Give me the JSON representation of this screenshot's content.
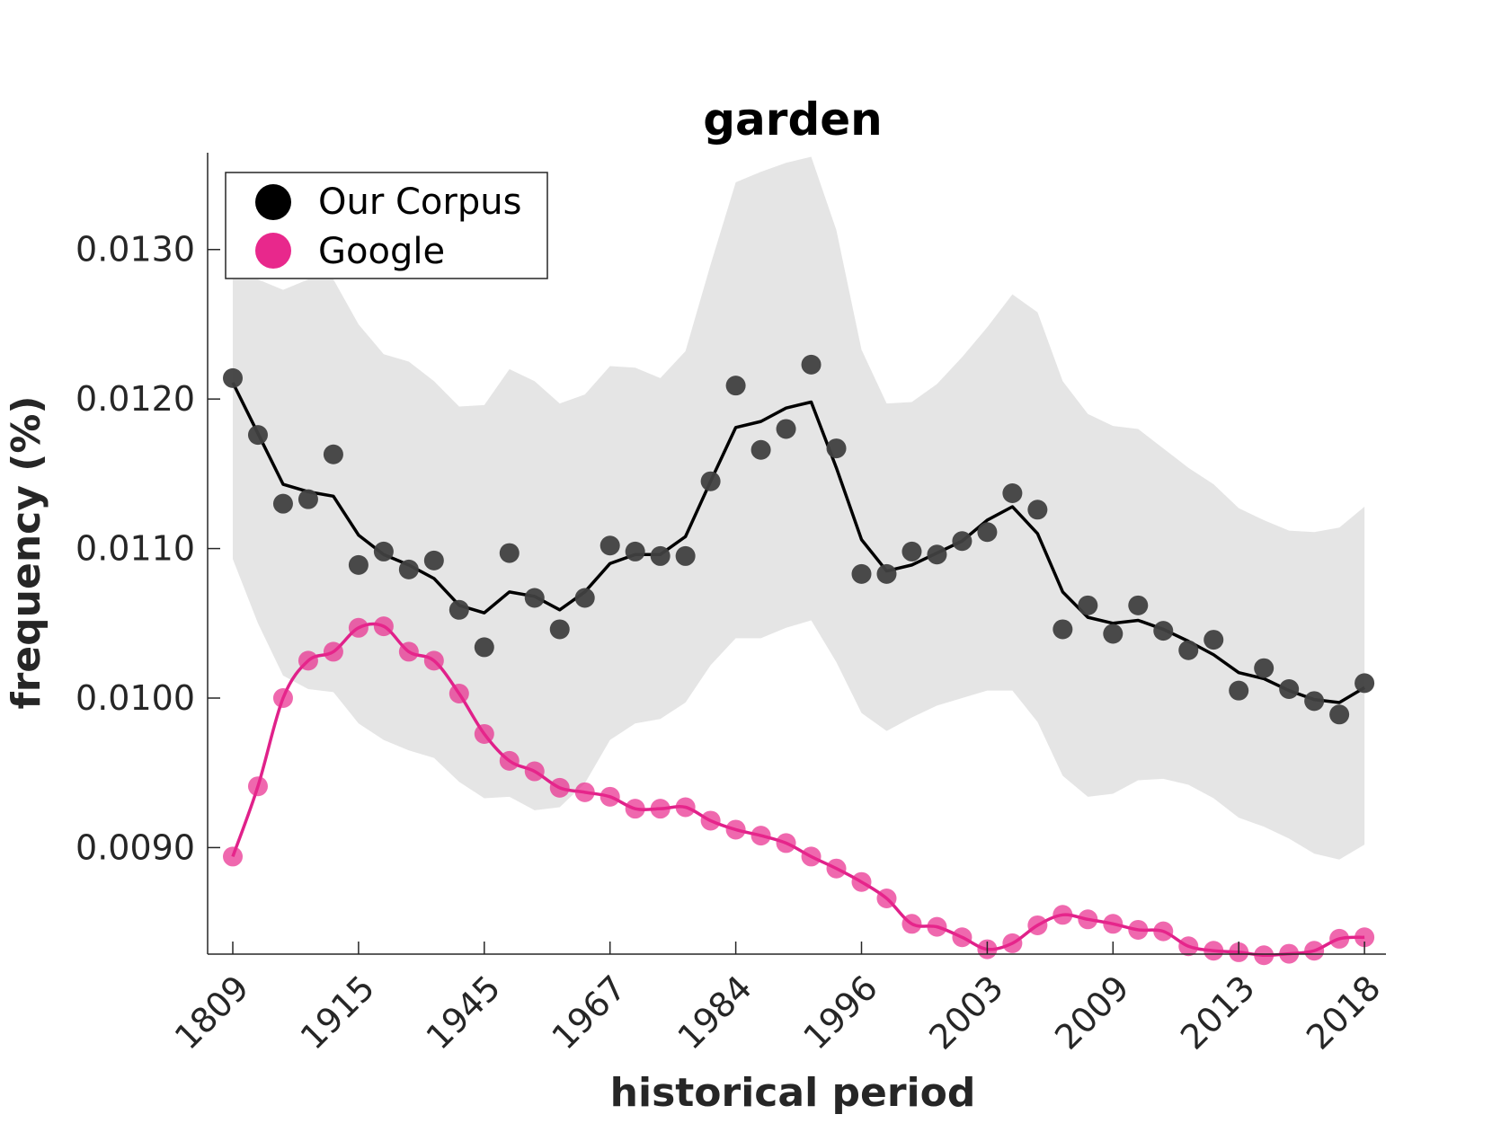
{
  "chart_data": {
    "type": "scatter",
    "title": "garden",
    "xlabel": "historical period",
    "ylabel": "frequency (%)",
    "ylim": [
      0.0083,
      0.0136
    ],
    "yticks": [
      "0.0090",
      "0.0100",
      "0.0110",
      "0.0120",
      "0.0130"
    ],
    "ytick_values": [
      0.009,
      0.01,
      0.011,
      0.012,
      0.013
    ],
    "x_tick_labels": [
      "1809",
      "1915",
      "1945",
      "1967",
      "1984",
      "1996",
      "2003",
      "2009",
      "2013",
      "2018"
    ],
    "x_tick_positions": [
      0,
      5,
      10,
      15,
      20,
      25,
      30,
      35,
      40,
      45
    ],
    "legend": {
      "position": "top-left"
    },
    "series": [
      {
        "name": "Our Corpus",
        "color": "#404040",
        "line_color": "#000000",
        "points": [
          0.01214,
          0.01176,
          0.0113,
          0.01133,
          0.01163,
          0.01089,
          0.01098,
          0.01086,
          0.01092,
          0.01059,
          0.01034,
          0.01097,
          0.01067,
          0.01046,
          0.01067,
          0.01102,
          0.01098,
          0.01095,
          0.01095,
          0.01145,
          0.01209,
          0.01166,
          0.0118,
          0.01223,
          0.01167,
          0.01083,
          0.01083,
          0.01098,
          0.01096,
          0.01105,
          0.01111,
          0.01137,
          0.01126,
          0.01046,
          0.01062,
          0.01043,
          0.01062,
          0.01045,
          0.01032,
          0.01039,
          0.01005,
          0.0102,
          0.01006,
          0.00998,
          0.00989,
          0.0101
        ],
        "smooth": [
          0.01211,
          0.01177,
          0.01143,
          0.01138,
          0.01135,
          0.01109,
          0.01096,
          0.01089,
          0.0108,
          0.01062,
          0.01057,
          0.01071,
          0.01068,
          0.01059,
          0.01071,
          0.0109,
          0.01096,
          0.01096,
          0.01108,
          0.01145,
          0.01181,
          0.01185,
          0.01194,
          0.01198,
          0.01154,
          0.01106,
          0.01085,
          0.01089,
          0.01097,
          0.01105,
          0.01119,
          0.01128,
          0.0111,
          0.01071,
          0.01054,
          0.0105,
          0.01052,
          0.01046,
          0.01038,
          0.01029,
          0.01017,
          0.01013,
          0.01005,
          0.00999,
          0.00997,
          0.01007
        ],
        "band_upper": [
          0.0128,
          0.0128,
          0.01273,
          0.0128,
          0.0128,
          0.0125,
          0.0123,
          0.01225,
          0.01212,
          0.01195,
          0.01196,
          0.0122,
          0.01212,
          0.01197,
          0.01203,
          0.01222,
          0.01221,
          0.01214,
          0.01232,
          0.0129,
          0.01345,
          0.01352,
          0.01358,
          0.01362,
          0.01313,
          0.01233,
          0.01197,
          0.01198,
          0.0121,
          0.01228,
          0.01248,
          0.0127,
          0.01258,
          0.01212,
          0.0119,
          0.01182,
          0.0118,
          0.01167,
          0.01154,
          0.01143,
          0.01127,
          0.01119,
          0.01112,
          0.01111,
          0.01114,
          0.01128
        ],
        "band_lower": [
          0.01093,
          0.0105,
          0.01015,
          0.01006,
          0.01004,
          0.00983,
          0.00972,
          0.00965,
          0.0096,
          0.00944,
          0.00933,
          0.00934,
          0.00925,
          0.00927,
          0.00943,
          0.00972,
          0.00983,
          0.00986,
          0.00997,
          0.01022,
          0.0104,
          0.0104,
          0.01047,
          0.01052,
          0.01024,
          0.0099,
          0.00978,
          0.00987,
          0.00995,
          0.01,
          0.01005,
          0.01005,
          0.00984,
          0.00948,
          0.00934,
          0.00936,
          0.00945,
          0.00946,
          0.00942,
          0.00933,
          0.0092,
          0.00914,
          0.00906,
          0.00896,
          0.00892,
          0.00902
        ]
      },
      {
        "name": "Google",
        "color": "#E8288C",
        "line_color": "#E0218A",
        "points": [
          0.00894,
          0.00941,
          0.01,
          0.01025,
          0.01031,
          0.01047,
          0.01048,
          0.01031,
          0.01025,
          0.01003,
          0.00976,
          0.00958,
          0.00951,
          0.0094,
          0.00937,
          0.00934,
          0.00926,
          0.00926,
          0.00927,
          0.00918,
          0.00912,
          0.00908,
          0.00903,
          0.00894,
          0.00886,
          0.00877,
          0.00866,
          0.00849,
          0.00847,
          0.0084,
          0.00832,
          0.00836,
          0.00848,
          0.00855,
          0.00852,
          0.00849,
          0.00845,
          0.00844,
          0.00834,
          0.00831,
          0.0083,
          0.00828,
          0.00829,
          0.00831,
          0.00839,
          0.0084
        ]
      }
    ]
  }
}
